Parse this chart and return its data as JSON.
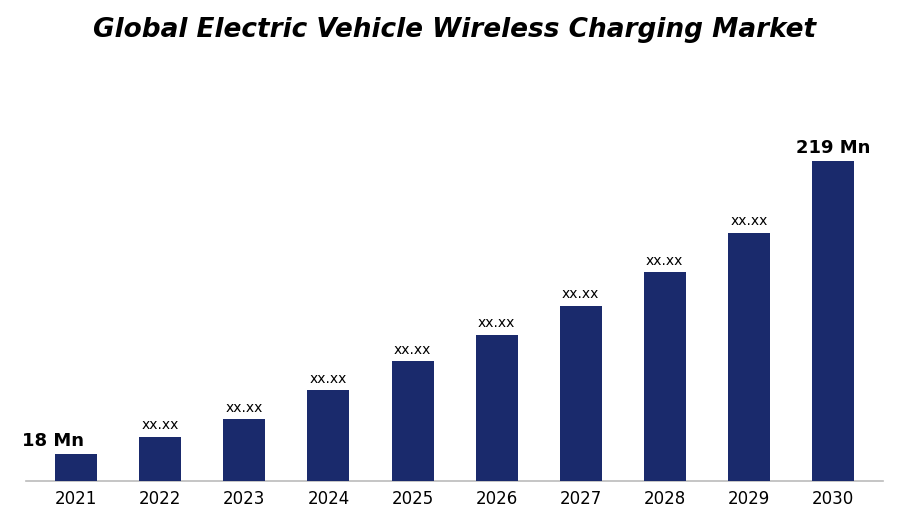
{
  "title": "Global Electric Vehicle Wireless Charging Market",
  "categories": [
    "2021",
    "2022",
    "2023",
    "2024",
    "2025",
    "2026",
    "2027",
    "2028",
    "2029",
    "2030"
  ],
  "values": [
    18,
    30,
    42,
    62,
    82,
    100,
    120,
    143,
    170,
    219
  ],
  "bar_color": "#1a2a6c",
  "background_color": "#ffffff",
  "labels": [
    "18 Mn",
    "xx.xx",
    "xx.xx",
    "xx.xx",
    "xx.xx",
    "xx.xx",
    "xx.xx",
    "xx.xx",
    "xx.xx",
    "219 Mn"
  ],
  "label_fontsize_small": 10,
  "label_fontsize_large": 13,
  "title_fontsize": 19,
  "xlabel_fontsize": 12,
  "ylim": [
    0,
    290
  ],
  "bar_width": 0.5
}
